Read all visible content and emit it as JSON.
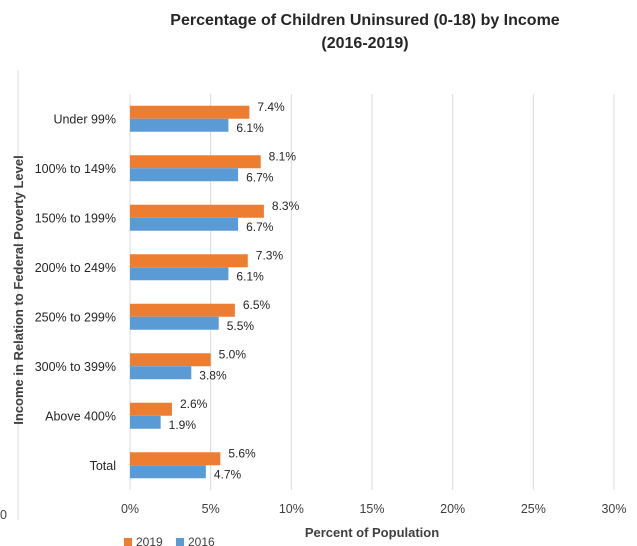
{
  "chart_data": {
    "type": "bar",
    "orientation": "horizontal",
    "title": "Percentage of Children Uninsured (0-18) by Income",
    "subtitle": "(2016-2019)",
    "xlabel": "Percent of Population",
    "ylabel": "Income in Relation to Federal Poverty Level",
    "categories": [
      "Under 99%",
      "100% to 149%",
      "150% to 199%",
      "200% to 249%",
      "250% to 299%",
      "300% to 399%",
      "Above 400%",
      "Total"
    ],
    "series": [
      {
        "name": "2019",
        "color": "#ed7d31",
        "values": [
          7.4,
          8.1,
          8.3,
          7.3,
          6.5,
          5.0,
          2.6,
          5.6
        ],
        "labels": [
          "7.4%",
          "8.1%",
          "8.3%",
          "7.3%",
          "6.5%",
          "5.0%",
          "2.6%",
          "5.6%"
        ]
      },
      {
        "name": "2016",
        "color": "#5b9bd5",
        "values": [
          6.1,
          6.7,
          6.7,
          6.1,
          5.5,
          3.8,
          1.9,
          4.7
        ],
        "labels": [
          "6.1%",
          "6.7%",
          "6.7%",
          "6.1%",
          "5.5%",
          "3.8%",
          "1.9%",
          "4.7%"
        ]
      }
    ],
    "xlim": [
      0,
      30
    ],
    "xticks": [
      0,
      5,
      10,
      15,
      20,
      25,
      30
    ],
    "xtick_labels": [
      "0%",
      "5%",
      "10%",
      "15%",
      "20%",
      "25%",
      "30%"
    ],
    "grid": true,
    "legend_position": "bottom",
    "edge_fragment": "0"
  }
}
